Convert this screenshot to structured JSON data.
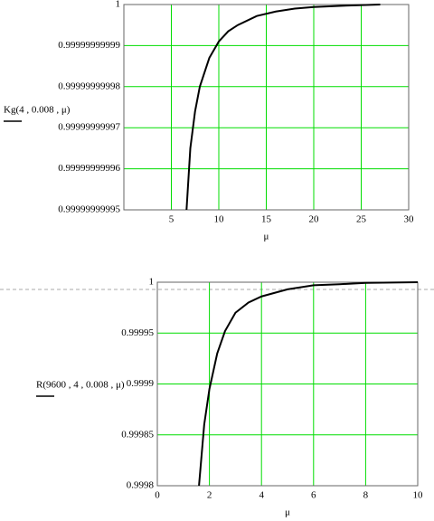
{
  "chart_data": [
    {
      "type": "line",
      "y_label": "Kg(4 , 0.008 , μ)",
      "x_label": "μ",
      "x": [
        6.6,
        7,
        7.5,
        8,
        9,
        10,
        11,
        12,
        14,
        16,
        18,
        20,
        23,
        27
      ],
      "values": [
        0.99999999995,
        0.999999999965,
        0.999999999974,
        0.99999999998,
        0.999999999987,
        0.999999999991,
        0.9999999999935,
        0.999999999995,
        0.9999999999972,
        0.9999999999983,
        0.999999999999,
        0.9999999999994,
        0.9999999999997,
        1
      ],
      "color": "#000000",
      "grid_color": "#00dd00",
      "grid": true,
      "xlim": [
        0,
        30
      ],
      "xticks": [
        5,
        10,
        15,
        20,
        25,
        30
      ],
      "ylim": [
        0.99999999995,
        1
      ],
      "yticks": [
        0.99999999995,
        0.99999999996,
        0.99999999997,
        0.99999999998,
        0.99999999999,
        1
      ]
    },
    {
      "type": "line",
      "y_label": "R(9600 , 4 , 0.008 , μ)",
      "x_label": "μ",
      "x": [
        1.6,
        1.8,
        2,
        2.3,
        2.6,
        3,
        3.5,
        4,
        5,
        6,
        7,
        8,
        9,
        10
      ],
      "values": [
        0.9998,
        0.99986,
        0.999895,
        0.99993,
        0.999952,
        0.99997,
        0.99998,
        0.999986,
        0.999993,
        0.999997,
        0.999998,
        0.9999993,
        0.9999997,
        1
      ],
      "color": "#000000",
      "grid_color": "#00dd00",
      "grid": true,
      "xlim": [
        0,
        10
      ],
      "xticks": [
        0,
        2,
        4,
        6,
        8,
        10
      ],
      "ylim": [
        0.9998,
        1
      ],
      "yticks": [
        0.9998,
        0.99985,
        0.9999,
        0.99995,
        1
      ]
    }
  ]
}
